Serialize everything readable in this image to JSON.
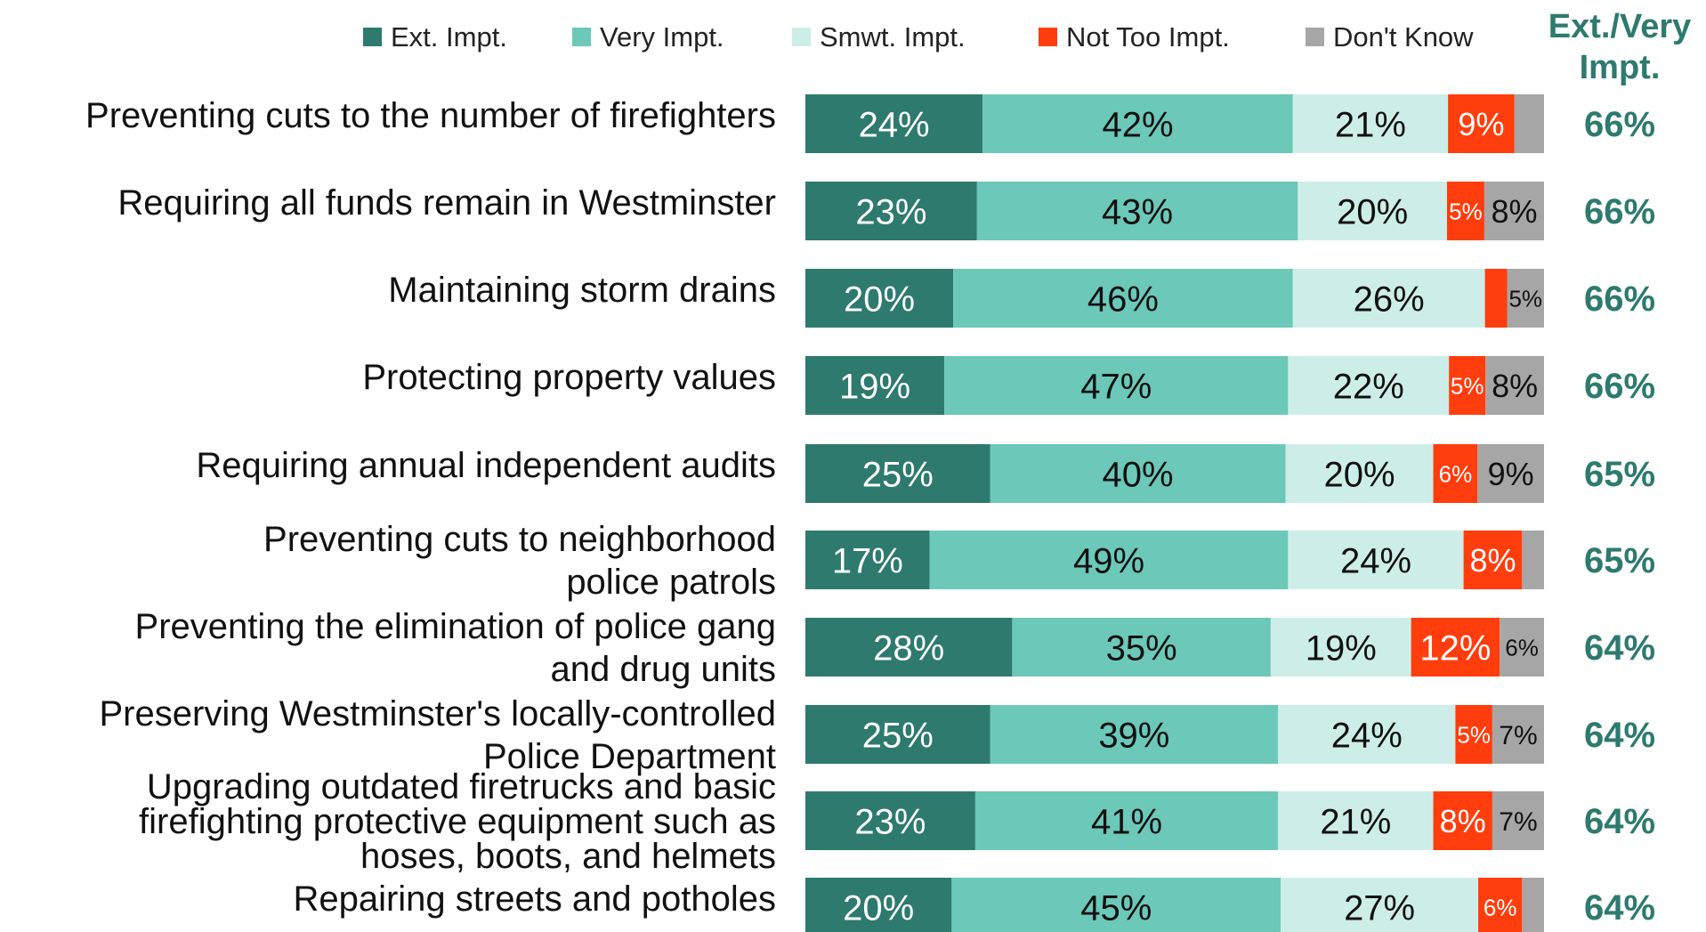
{
  "chart_data": {
    "type": "bar",
    "orientation": "horizontal",
    "stacked": true,
    "xlim": [
      0,
      100
    ],
    "legend_position": "top",
    "categories": [
      "Preventing cuts to the number of firefighters",
      "Requiring all funds remain in Westminster",
      "Maintaining storm drains",
      "Protecting property values",
      "Requiring annual independent audits",
      "Preventing cuts to neighborhood police patrols",
      "Preventing the elimination of police gang and drug units",
      "Preserving Westminster's locally-controlled Police Department",
      "Upgrading outdated firetrucks and basic firefighting protective equipment such as hoses, boots, and helmets",
      "Repairing streets and potholes"
    ],
    "category_lines": [
      [
        "Preventing cuts to the number of firefighters"
      ],
      [
        "Requiring all funds remain in Westminster"
      ],
      [
        "Maintaining storm drains"
      ],
      [
        "Protecting property values"
      ],
      [
        "Requiring annual independent audits"
      ],
      [
        "Preventing cuts to neighborhood",
        "police patrols"
      ],
      [
        "Preventing the elimination of police gang",
        "and drug units"
      ],
      [
        "Preserving Westminster's locally-controlled",
        "Police Department"
      ],
      [
        "Upgrading outdated firetrucks and basic",
        "firefighting protective equipment such as",
        "hoses, boots, and helmets"
      ],
      [
        "Repairing streets and potholes"
      ]
    ],
    "series": [
      {
        "name": "Ext. Impt.",
        "color": "#2e7a6e",
        "label_color": "#ffffff",
        "values": [
          24,
          23,
          20,
          19,
          25,
          17,
          28,
          25,
          23,
          20
        ],
        "labels": [
          "24%",
          "23%",
          "20%",
          "19%",
          "25%",
          "17%",
          "28%",
          "25%",
          "23%",
          "20%"
        ]
      },
      {
        "name": "Very Impt.",
        "color": "#6cc8b9",
        "label_color": "#111111",
        "values": [
          42,
          43,
          46,
          47,
          40,
          49,
          35,
          39,
          41,
          45
        ],
        "labels": [
          "42%",
          "43%",
          "46%",
          "47%",
          "40%",
          "49%",
          "35%",
          "39%",
          "41%",
          "45%"
        ]
      },
      {
        "name": "Smwt. Impt.",
        "color": "#cdeee8",
        "label_color": "#111111",
        "values": [
          21,
          20,
          26,
          22,
          20,
          24,
          19,
          24,
          21,
          27
        ],
        "labels": [
          "21%",
          "20%",
          "26%",
          "22%",
          "20%",
          "24%",
          "19%",
          "24%",
          "21%",
          "27%"
        ]
      },
      {
        "name": "Not Too Impt.",
        "color": "#ff3d0d",
        "label_color": "#ffffff",
        "values": [
          9,
          5,
          3,
          5,
          6,
          8,
          12,
          5,
          8,
          6
        ],
        "labels": [
          "9%",
          "5%",
          "",
          "5%",
          "6%",
          "8%",
          "12%",
          "5%",
          "8%",
          "6%"
        ]
      },
      {
        "name": "Don't Know",
        "color": "#a6a6a6",
        "label_color": "#111111",
        "values": [
          4,
          8,
          5,
          8,
          9,
          3,
          6,
          7,
          7,
          3
        ],
        "labels": [
          "",
          "8%",
          "5%",
          "8%",
          "9%",
          "",
          "6%",
          "7%",
          "7%",
          ""
        ]
      }
    ],
    "totals": {
      "header": [
        "Ext./Very",
        "Impt."
      ],
      "color": "#2e7a6e",
      "values": [
        66,
        66,
        66,
        66,
        65,
        65,
        64,
        64,
        64,
        64
      ],
      "labels": [
        "66%",
        "66%",
        "66%",
        "66%",
        "65%",
        "65%",
        "64%",
        "64%",
        "64%",
        "64%"
      ]
    }
  }
}
